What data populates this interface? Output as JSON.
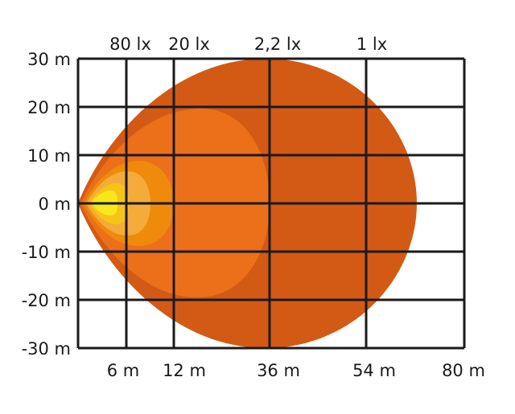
{
  "top_labels": [
    "80 lx",
    "20 lx",
    "2,2 lx",
    "1 lx"
  ],
  "bottom_labels": [
    "6 m",
    "12 m",
    "36 m",
    "54 m",
    "80 m"
  ],
  "left_labels": [
    "30 m",
    "20 m",
    "10 m",
    "0 m",
    "-10 m",
    "-20 m",
    "-30 m"
  ],
  "zone_colors": {
    "1 lx": "#d35a14",
    "2,2 lx": "#ec7019",
    "20 lx": "#ef8a0c",
    "light": "#f4ab3a",
    "80 lx": "#f6c417",
    "core": "#f7e81c"
  },
  "grid_color": "#1a1a1a"
}
